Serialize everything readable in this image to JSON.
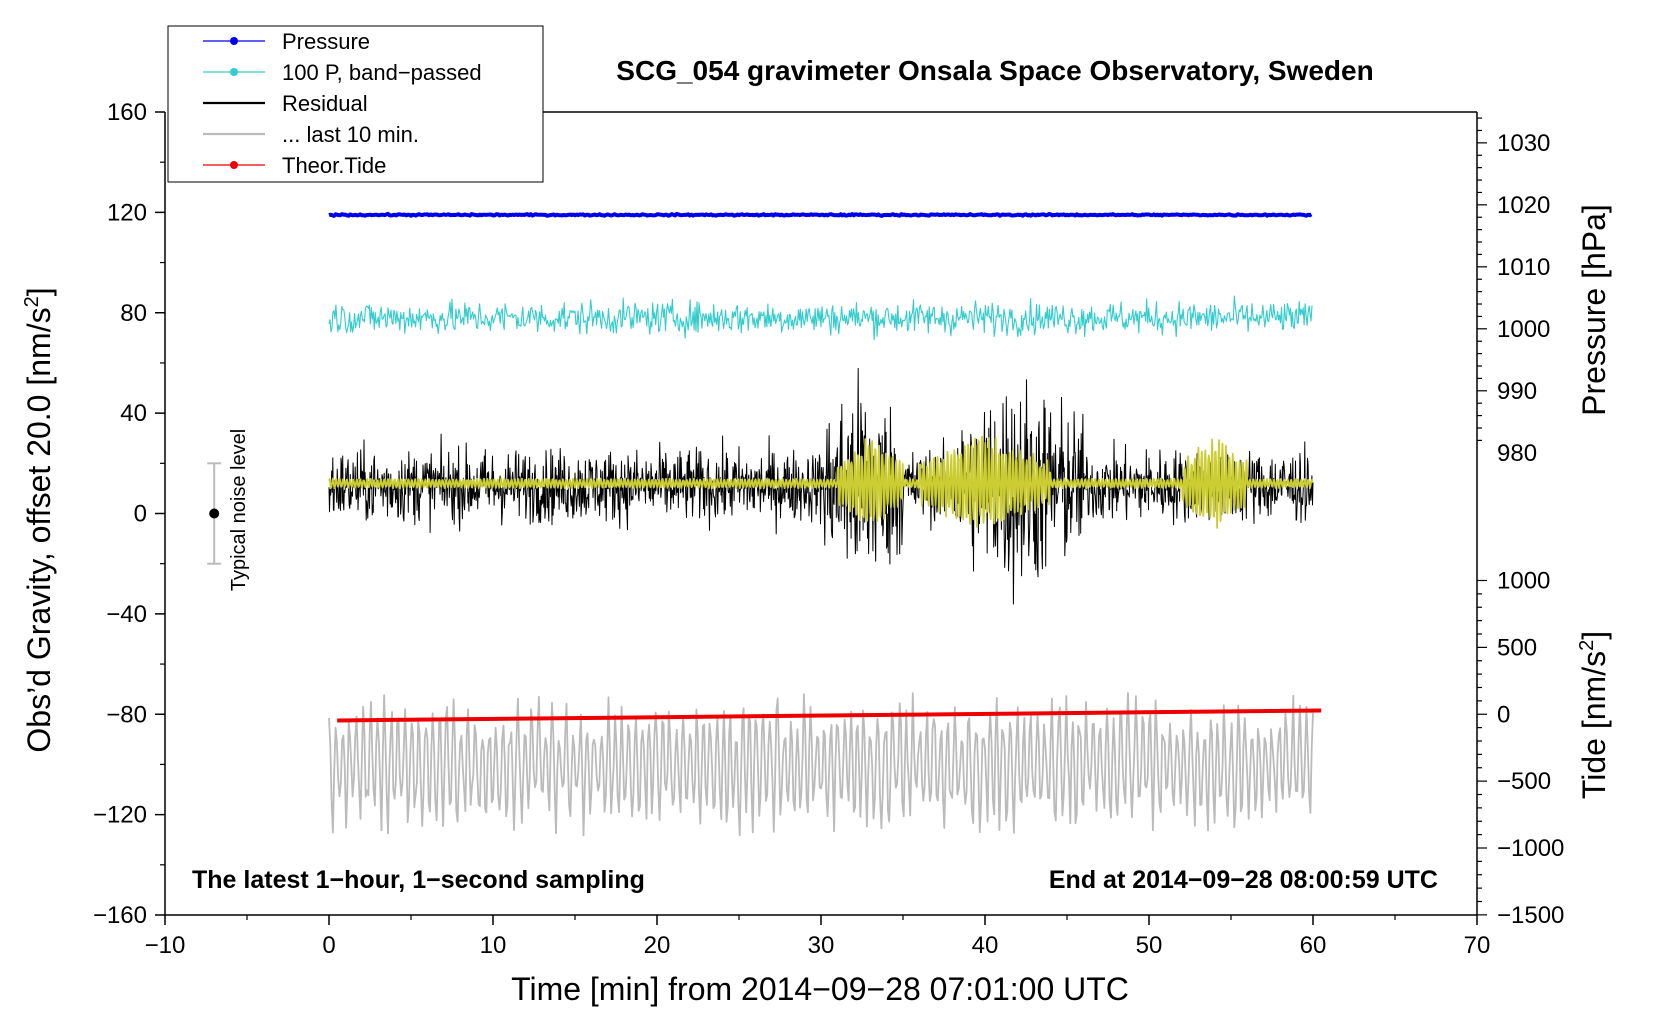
{
  "chart_data": {
    "type": "line",
    "title": "SCG_054 gravimeter Onsala Space Observatory, Sweden",
    "xlabel": "Time [min] from 2014−09−28 07:01:00 UTC",
    "ylabel": "Obs’d Gravity, offset 20.0 [nm/s",
    "ylabel_sup": "2",
    "ylabel_close": "]",
    "y2label": "Pressure [hPa]",
    "y3label": "Tide [nm/s",
    "y3label_sup": "2",
    "y3label_close": "]",
    "note_left": "The latest 1−hour, 1−second sampling",
    "note_right": "End at 2014−09−28 08:00:59 UTC",
    "noise_label": "Typical noise level",
    "noise_bar": {
      "x": -7,
      "center": 0,
      "low": -20,
      "high": 20
    },
    "xlim": [
      -10,
      70
    ],
    "ylim": [
      -160,
      160
    ],
    "xticks": [
      -10,
      0,
      10,
      20,
      30,
      40,
      50,
      60,
      70
    ],
    "xtick_labels": [
      "−10",
      "0",
      "10",
      "20",
      "30",
      "40",
      "50",
      "60",
      "70"
    ],
    "yticks": [
      -160,
      -120,
      -80,
      -40,
      0,
      40,
      80,
      120,
      160
    ],
    "ytick_labels": [
      "−160",
      "−120",
      "−80",
      "−40",
      "0",
      "40",
      "80",
      "120",
      "160"
    ],
    "pressure_axis": {
      "ticks": [
        980,
        990,
        1000,
        1010,
        1020,
        1030
      ],
      "tick_labels": [
        "980",
        "990",
        "1000",
        "1010",
        "1020",
        "1030"
      ],
      "gravity_at_1000": 73.6,
      "gravity_per_hpa": 2.47
    },
    "tide_axis": {
      "ticks": [
        -1500,
        -1000,
        -500,
        0,
        500,
        1000
      ],
      "tick_labels": [
        "−1500",
        "−1000",
        "−500",
        "0",
        "500",
        "1000"
      ],
      "gravity_at_0": -80,
      "gravity_per_unit": 0.0533
    },
    "legend": [
      {
        "label": "Pressure",
        "color": "#0000ee",
        "marker": true
      },
      {
        "label": "100 P, band−passed",
        "color": "#33cccc",
        "marker": true
      },
      {
        "label": "Residual",
        "color": "#000000",
        "marker": false
      },
      {
        "label": "... last 10 min.",
        "color": "#bbbbbb",
        "marker": false
      },
      {
        "label": "Theor.Tide",
        "color": "#ee0000",
        "marker": true
      }
    ],
    "series": [
      {
        "name": "Pressure",
        "color": "#0000ee",
        "x_range": [
          0,
          60
        ],
        "level": 119,
        "noise": 0.6
      },
      {
        "name": "100 P, band−passed",
        "color": "#33cccc",
        "x_range": [
          0,
          60
        ],
        "level": 78,
        "amplitude": 9
      },
      {
        "name": "Residual",
        "color": "#000000",
        "x_range": [
          0,
          60
        ],
        "level": 11,
        "amplitude": 14,
        "burst_amplitude": 30,
        "burst_windows": [
          [
            30,
            35
          ],
          [
            38,
            46
          ]
        ]
      },
      {
        "name": "Residual smoothed",
        "color": "#cccc33",
        "x_range": [
          0,
          60
        ],
        "level": 12,
        "amplitude": 2,
        "burst_amplitude": 18,
        "burst_windows": [
          [
            31,
            35
          ],
          [
            36,
            44
          ],
          [
            52,
            56
          ]
        ]
      },
      {
        "name": "... last 10 min.",
        "color": "#bbbbbb",
        "x_range": [
          0,
          60
        ],
        "level": -100,
        "amplitude": 22
      },
      {
        "name": "Theor.Tide",
        "color": "#ee0000",
        "x_range": [
          0.5,
          60.5
        ],
        "y_start": -82.5,
        "y_end": -78.5
      }
    ]
  }
}
